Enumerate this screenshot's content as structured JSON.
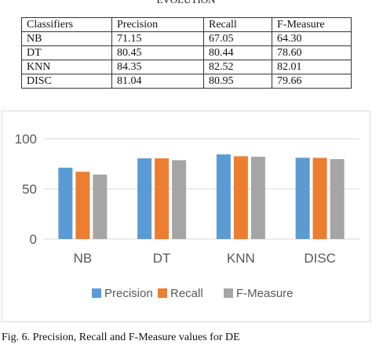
{
  "heading": "EVOLUTION",
  "table": {
    "headers": [
      "Classifiers",
      "Precision",
      "Recall",
      "F-Measure"
    ],
    "rows": [
      [
        "NB",
        "71.15",
        "67.05",
        "64.30"
      ],
      [
        "DT",
        "80.45",
        "80.44",
        "78.60"
      ],
      [
        "KNN",
        "84.35",
        "82.52",
        "82.01"
      ],
      [
        "DISC",
        "81.04",
        "80.95",
        "79.66"
      ]
    ]
  },
  "chart_data": {
    "type": "bar",
    "categories": [
      "NB",
      "DT",
      "KNN",
      "DISC"
    ],
    "series": [
      {
        "name": "Precision",
        "values": [
          71.15,
          80.45,
          84.35,
          81.04
        ],
        "color": "#5b9bd5"
      },
      {
        "name": "Recall",
        "values": [
          67.05,
          80.44,
          82.52,
          80.95
        ],
        "color": "#ed7d31"
      },
      {
        "name": "F-Measure",
        "values": [
          64.3,
          78.6,
          82.01,
          79.66
        ],
        "color": "#a5a5a5"
      }
    ],
    "yticks": [
      0,
      50,
      100
    ],
    "ylim": [
      0,
      100
    ],
    "grid": true,
    "legend_position": "bottom"
  },
  "caption": "Fig. 6.   Precision, Recall and F-Measure values for DE"
}
